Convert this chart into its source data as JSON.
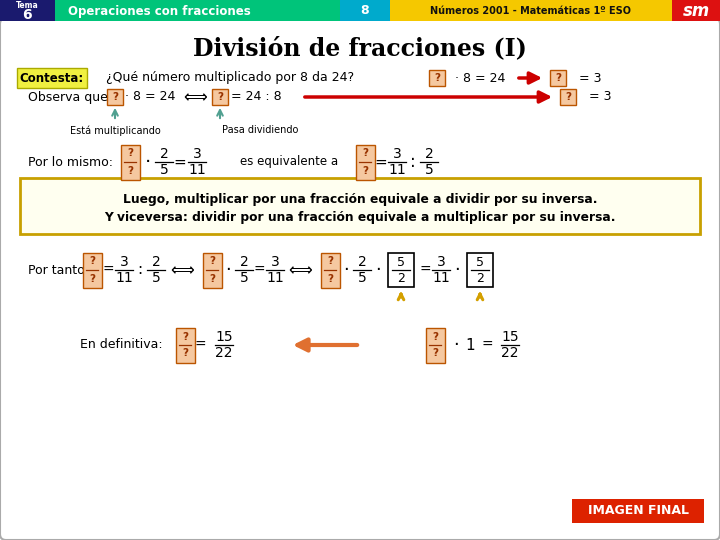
{
  "title": "División de fracciones (I)",
  "header_subject": "Operaciones con fracciones",
  "header_num": "8",
  "header_book": "Números 2001 - Matemáticas 1º ESO",
  "header_sm": "sm",
  "header_dark_blue": "#1a1a6e",
  "header_green": "#00c47a",
  "header_cyan": "#00aacc",
  "header_yellow": "#f5c800",
  "header_red": "#dd1111",
  "contesta_bg": "#f0f040",
  "question_box_bg": "#f5c8a0",
  "yellow_box_border": "#c8a000",
  "arrow_red": "#cc0000",
  "arrow_teal": "#50a090",
  "arrow_yellow": "#d4a000",
  "arrow_orange": "#e07030",
  "imagen_final_bg": "#dd2200",
  "imagen_final_text": "IMAGEN FINAL"
}
